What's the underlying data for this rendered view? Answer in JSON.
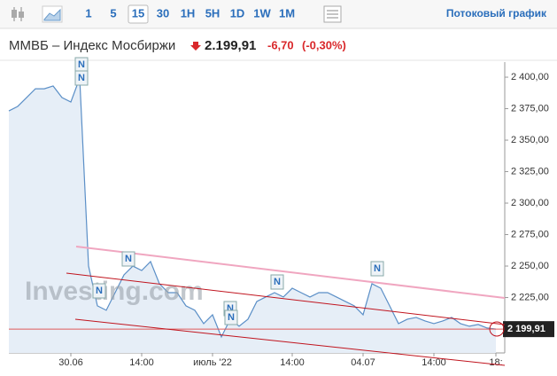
{
  "toolbar": {
    "intervals": [
      "1",
      "5",
      "15",
      "30",
      "1H",
      "5H",
      "1D",
      "1W",
      "1M"
    ],
    "selected_interval": "15",
    "streaming_link": "Потоковый график"
  },
  "header": {
    "instrument": "ММВБ – Индекс Мосбиржи",
    "last": "2.199,91",
    "change": "-6,70",
    "change_percent": "(-0,30%)"
  },
  "chart_data": {
    "type": "line",
    "color": "#5b8fc7",
    "categories": [
      null,
      null,
      null,
      null,
      null,
      null,
      null,
      "30.06",
      null,
      null,
      null,
      null,
      null,
      null,
      null,
      "14:00",
      null,
      null,
      null,
      null,
      null,
      null,
      null,
      "июль '22",
      null,
      null,
      null,
      null,
      null,
      null,
      null,
      null,
      "14:00",
      null,
      null,
      null,
      null,
      null,
      null,
      null,
      "04.07",
      null,
      null,
      null,
      null,
      null,
      null,
      null,
      "14:00",
      null,
      null,
      null,
      null,
      null,
      null,
      "18:"
    ],
    "values": [
      2373.2,
      2376.8,
      2383.8,
      2390.8,
      2390.8,
      2393.0,
      2383.8,
      2380.3,
      2399.3,
      2250.0,
      2218.4,
      2214.9,
      2228.9,
      2243.0,
      2250.0,
      2246.5,
      2253.6,
      2236.0,
      2228.9,
      2228.9,
      2218.4,
      2214.9,
      2204.3,
      2211.3,
      2193.7,
      2207.8,
      2202.2,
      2207.8,
      2221.9,
      2225.4,
      2228.9,
      2225.4,
      2232.4,
      2228.9,
      2225.4,
      2228.9,
      2228.9,
      2225.4,
      2221.9,
      2218.4,
      2211.3,
      2236.0,
      2232.4,
      2218.4,
      2204.3,
      2207.8,
      2209.2,
      2206.4,
      2204.3,
      2206.4,
      2209.2,
      2204.3,
      2202.2,
      2203.6,
      2200.8,
      2199.91
    ],
    "ylim": [
      2181,
      2412
    ],
    "yticks": [
      {
        "value": 2400,
        "label": "2 400,00"
      },
      {
        "value": 2375,
        "label": "2 375,00"
      },
      {
        "value": 2350,
        "label": "2 350,00"
      },
      {
        "value": 2325,
        "label": "2 325,00"
      },
      {
        "value": 2300,
        "label": "2 300,00"
      },
      {
        "value": 2275,
        "label": "2 275,00"
      },
      {
        "value": 2250,
        "label": "2 250,00"
      },
      {
        "value": 2225,
        "label": "2 225,00"
      }
    ],
    "last_price": {
      "value": 2199.91,
      "label": "2 199,91"
    },
    "watermark": "Investing.com",
    "news_marker_label": "N"
  }
}
